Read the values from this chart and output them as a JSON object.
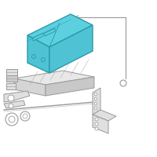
{
  "background_color": "#ffffff",
  "battery_fill": "#4fc3d4",
  "battery_stroke": "#2a9aaa",
  "battery_dark": "#38aabb",
  "battery_top": "#5dd0e0",
  "outline_color": "#999999",
  "outline_dark": "#777777",
  "gray_fill": "#cccccc",
  "light_gray": "#e0e0e0",
  "fig_width": 2.0,
  "fig_height": 2.0,
  "dpi": 100
}
